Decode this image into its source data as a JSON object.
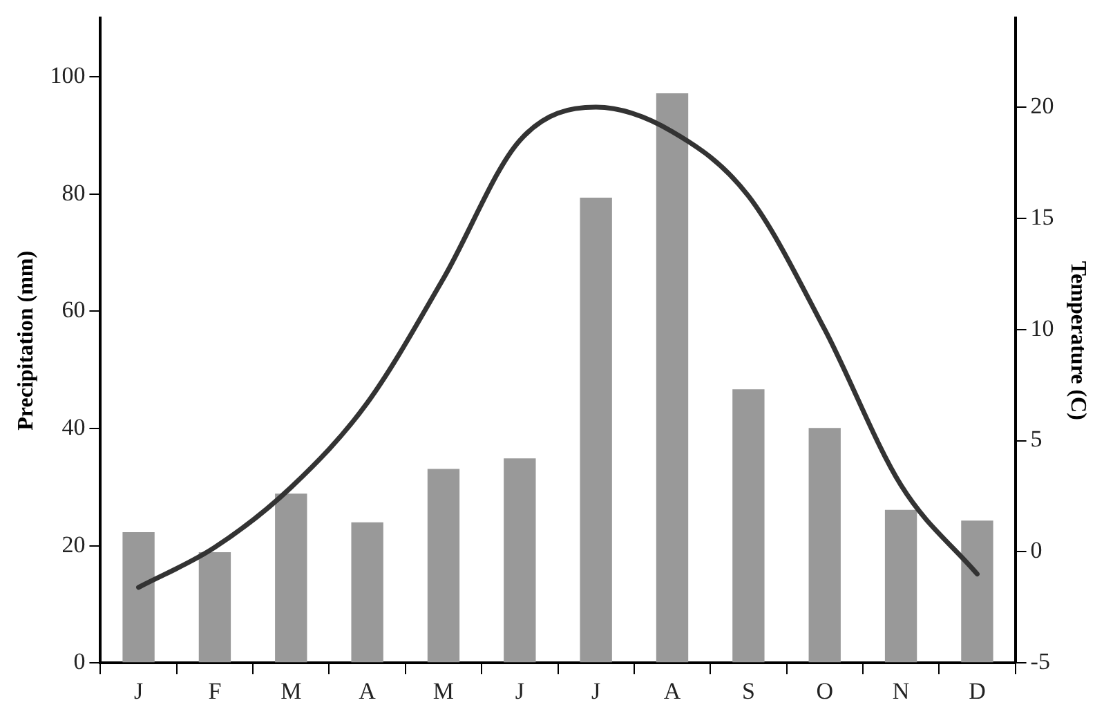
{
  "chart_data": {
    "type": "bar",
    "categories": [
      "J",
      "F",
      "M",
      "A",
      "M",
      "J",
      "J",
      "A",
      "S",
      "O",
      "N",
      "D"
    ],
    "ylabel": "Precipitation (mm)",
    "y2label": "Temperature (C)",
    "ylim": [
      0,
      110
    ],
    "yticks": [
      0,
      20,
      40,
      60,
      80,
      100
    ],
    "y2lim": [
      -5,
      24
    ],
    "y2ticks": [
      -5,
      0,
      5,
      10,
      15,
      20
    ],
    "marker": "none",
    "series": [
      {
        "color": "#999999",
        "values": [
          22.3,
          18.9,
          28.9,
          24.0,
          33.1,
          34.9,
          79.4,
          97.2,
          46.7,
          40.1,
          26.1,
          24.3
        ]
      },
      {
        "type": "line",
        "axis": "y2",
        "color": "#333333",
        "values": [
          -1.6,
          0.2,
          2.9,
          6.7,
          12.3,
          18.5,
          20.0,
          18.9,
          16.0,
          10.0,
          3.0,
          -1.0
        ]
      }
    ]
  }
}
